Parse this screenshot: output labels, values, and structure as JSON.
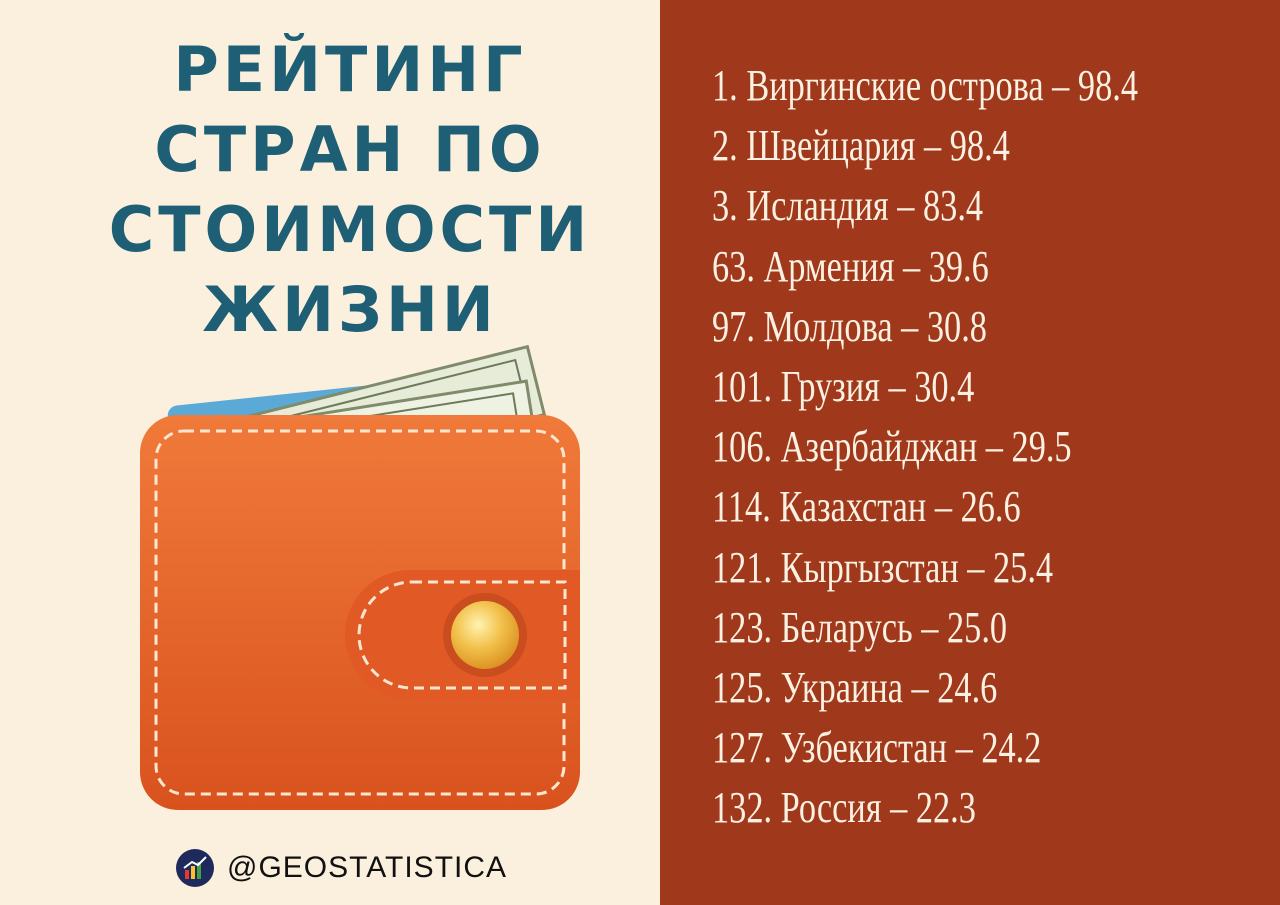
{
  "title": {
    "lines": [
      "РЕЙТИНГ",
      "СТРАН ПО",
      "СТОИМОСТИ",
      "ЖИЗНИ"
    ]
  },
  "footer": {
    "handle": "@GEOSTATISTICA",
    "logo_icon": "chart-logo-icon"
  },
  "ranking": [
    "1. Виргинские острова – 98.4",
    "2. Швейцария – 98.4",
    "3. Исландия – 83.4",
    "63. Армения – 39.6",
    "97. Молдова – 30.8",
    "101. Грузия – 30.4",
    "106. Азербайджан – 29.5",
    "114. Казахстан – 26.6",
    "121. Кыргызстан – 25.4",
    "123. Беларусь – 25.0",
    "125. Украина – 24.6",
    "127. Узбекистан – 24.2",
    "132. Россия – 22.3"
  ],
  "colors": {
    "left_bg": "#fbf0dd",
    "right_bg": "#a0391c",
    "title": "#1e5f76",
    "list_text": "#fbf1e2",
    "wallet": "#e8642a"
  },
  "illustration": "wallet-icon"
}
